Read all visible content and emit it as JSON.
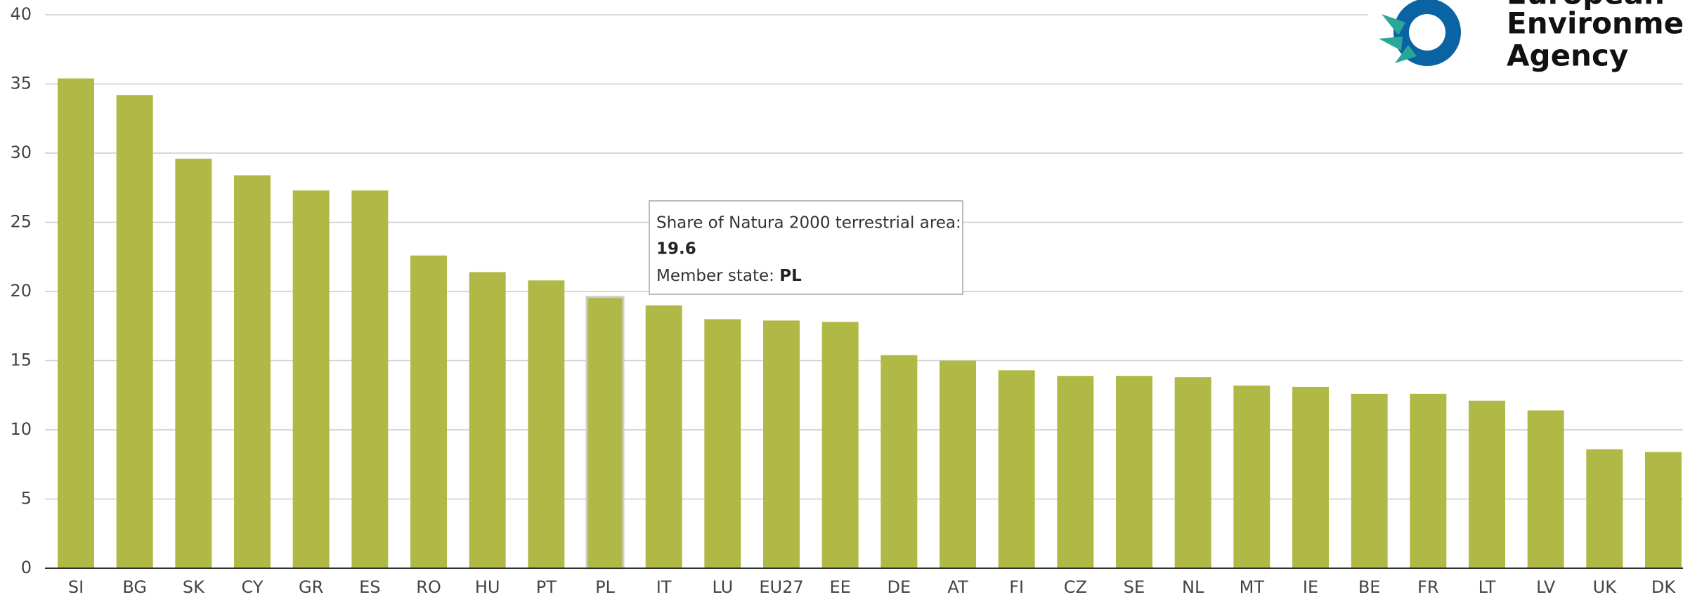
{
  "chart_data": {
    "type": "bar",
    "categories": [
      "SI",
      "BG",
      "SK",
      "CY",
      "GR",
      "ES",
      "RO",
      "HU",
      "PT",
      "PL",
      "IT",
      "LU",
      "EU27",
      "EE",
      "DE",
      "AT",
      "FI",
      "CZ",
      "SE",
      "NL",
      "MT",
      "IE",
      "BE",
      "FR",
      "LT",
      "LV",
      "UK",
      "DK"
    ],
    "values": [
      35.4,
      34.2,
      29.6,
      28.4,
      27.3,
      27.3,
      22.6,
      21.4,
      20.8,
      19.6,
      19.0,
      18.0,
      17.9,
      17.8,
      15.4,
      15.0,
      14.3,
      13.9,
      13.9,
      13.8,
      13.2,
      13.1,
      12.6,
      12.6,
      12.1,
      11.4,
      8.6,
      8.4
    ],
    "color": "#b1b946",
    "ylim": [
      0,
      40
    ],
    "yticks": [
      0,
      5,
      10,
      15,
      20,
      25,
      30,
      35,
      40
    ],
    "grid": true,
    "tooltip": {
      "label": "Share of Natura 2000 terrestrial area:",
      "member_label": "Member state:"
    },
    "logo": [
      "European",
      "Environment",
      "Agency"
    ]
  }
}
